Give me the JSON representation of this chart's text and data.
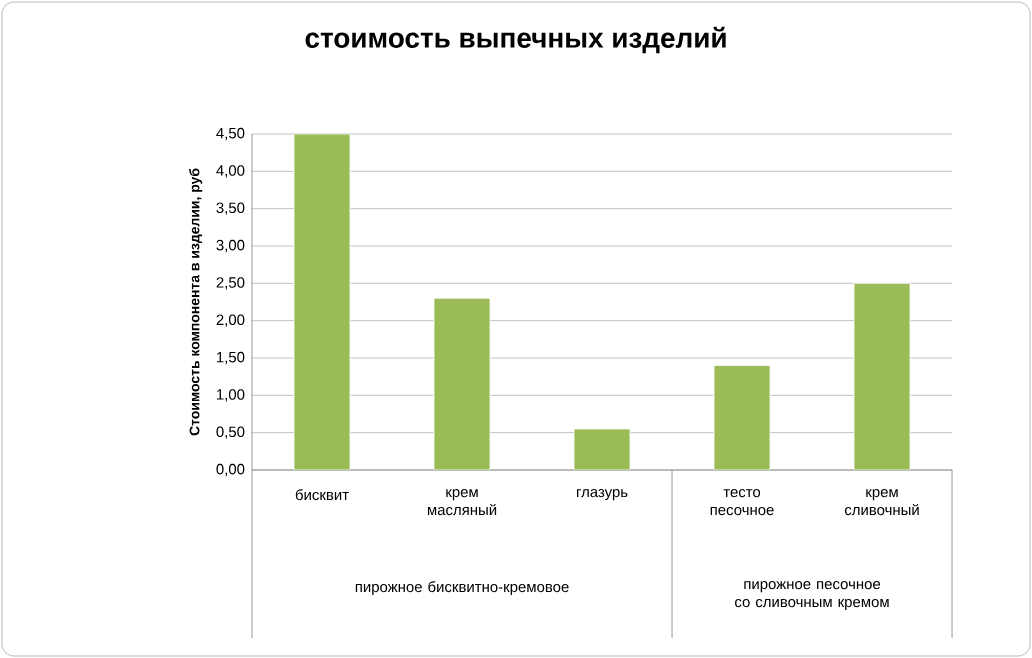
{
  "chart_data": {
    "type": "bar",
    "title": "стоимость выпечных изделий",
    "ylabel": "Стоимость компонента в изделии, руб",
    "categories": [
      "бисквит",
      "крем масляный",
      "глазурь",
      "тесто песочное",
      "крем сливочный"
    ],
    "values": [
      4.5,
      2.3,
      0.55,
      1.4,
      2.5
    ],
    "color": "#9bbb59",
    "ylim": [
      0,
      4.5
    ],
    "yticks": [
      {
        "value": 0,
        "label": "0,00"
      },
      {
        "value": 0.5,
        "label": "0,50"
      },
      {
        "value": 1,
        "label": "1,00"
      },
      {
        "value": 1.5,
        "label": "1,50"
      },
      {
        "value": 2,
        "label": "2,00"
      },
      {
        "value": 2.5,
        "label": "2,50"
      },
      {
        "value": 3,
        "label": "3,00"
      },
      {
        "value": 3.5,
        "label": "3,50"
      },
      {
        "value": 4,
        "label": "4,00"
      },
      {
        "value": 4.5,
        "label": "4,50"
      }
    ],
    "grid": "y",
    "annotations": [
      "пирожное бисквитно-кремовое",
      "пирожное песочное со сливочным кремом"
    ]
  }
}
